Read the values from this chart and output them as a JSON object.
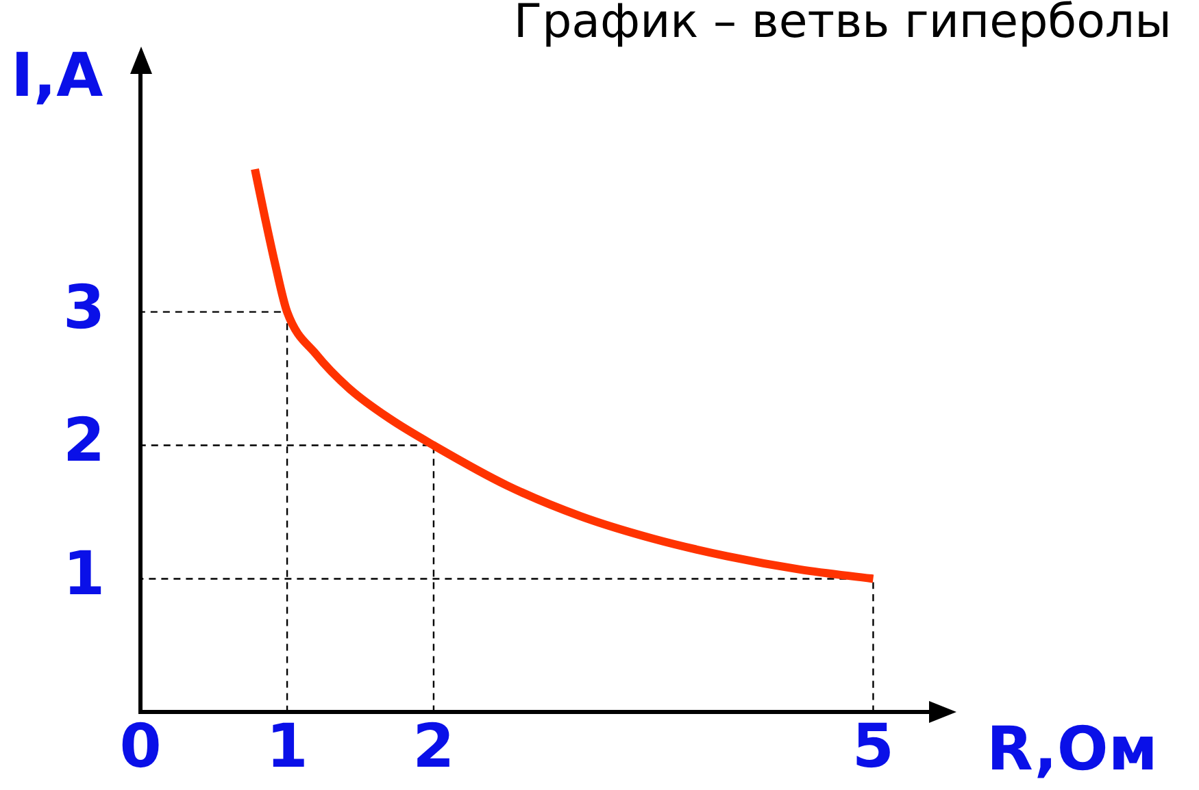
{
  "chart_data": {
    "type": "line",
    "title": "График – ветвь гиперболы",
    "xlabel": "R,Ом",
    "ylabel": "I,A",
    "x": [
      0.78,
      0.85,
      0.92,
      1,
      1.2,
      1.43,
      1.7,
      2,
      2.5,
      3,
      3.5,
      4,
      4.5,
      5
    ],
    "series": [
      {
        "color": "#ff3300",
        "values": [
          4.07,
          3.7,
          3.35,
          3,
          2.68,
          2.42,
          2.2,
          2,
          1.7,
          1.47,
          1.3,
          1.17,
          1.07,
          1
        ]
      },
      {
        "color": "#000000",
        "line_style": "dashed",
        "x": [
          1,
          1,
          0
        ],
        "values": [
          0,
          3,
          3
        ]
      },
      {
        "color": "#000000",
        "line_style": "dashed",
        "x": [
          2,
          2,
          0
        ],
        "values": [
          0,
          2,
          2
        ]
      },
      {
        "color": "#000000",
        "line_style": "dashed",
        "x": [
          5,
          5,
          0
        ],
        "values": [
          0,
          1,
          1
        ]
      }
    ],
    "xlim": [
      0,
      5.4
    ],
    "ylim": [
      0,
      4.8
    ],
    "xticks": [
      0,
      1,
      2,
      5
    ],
    "yticks": [
      1,
      2,
      3
    ],
    "grid": false,
    "marker": "none",
    "line_style": "solid"
  }
}
